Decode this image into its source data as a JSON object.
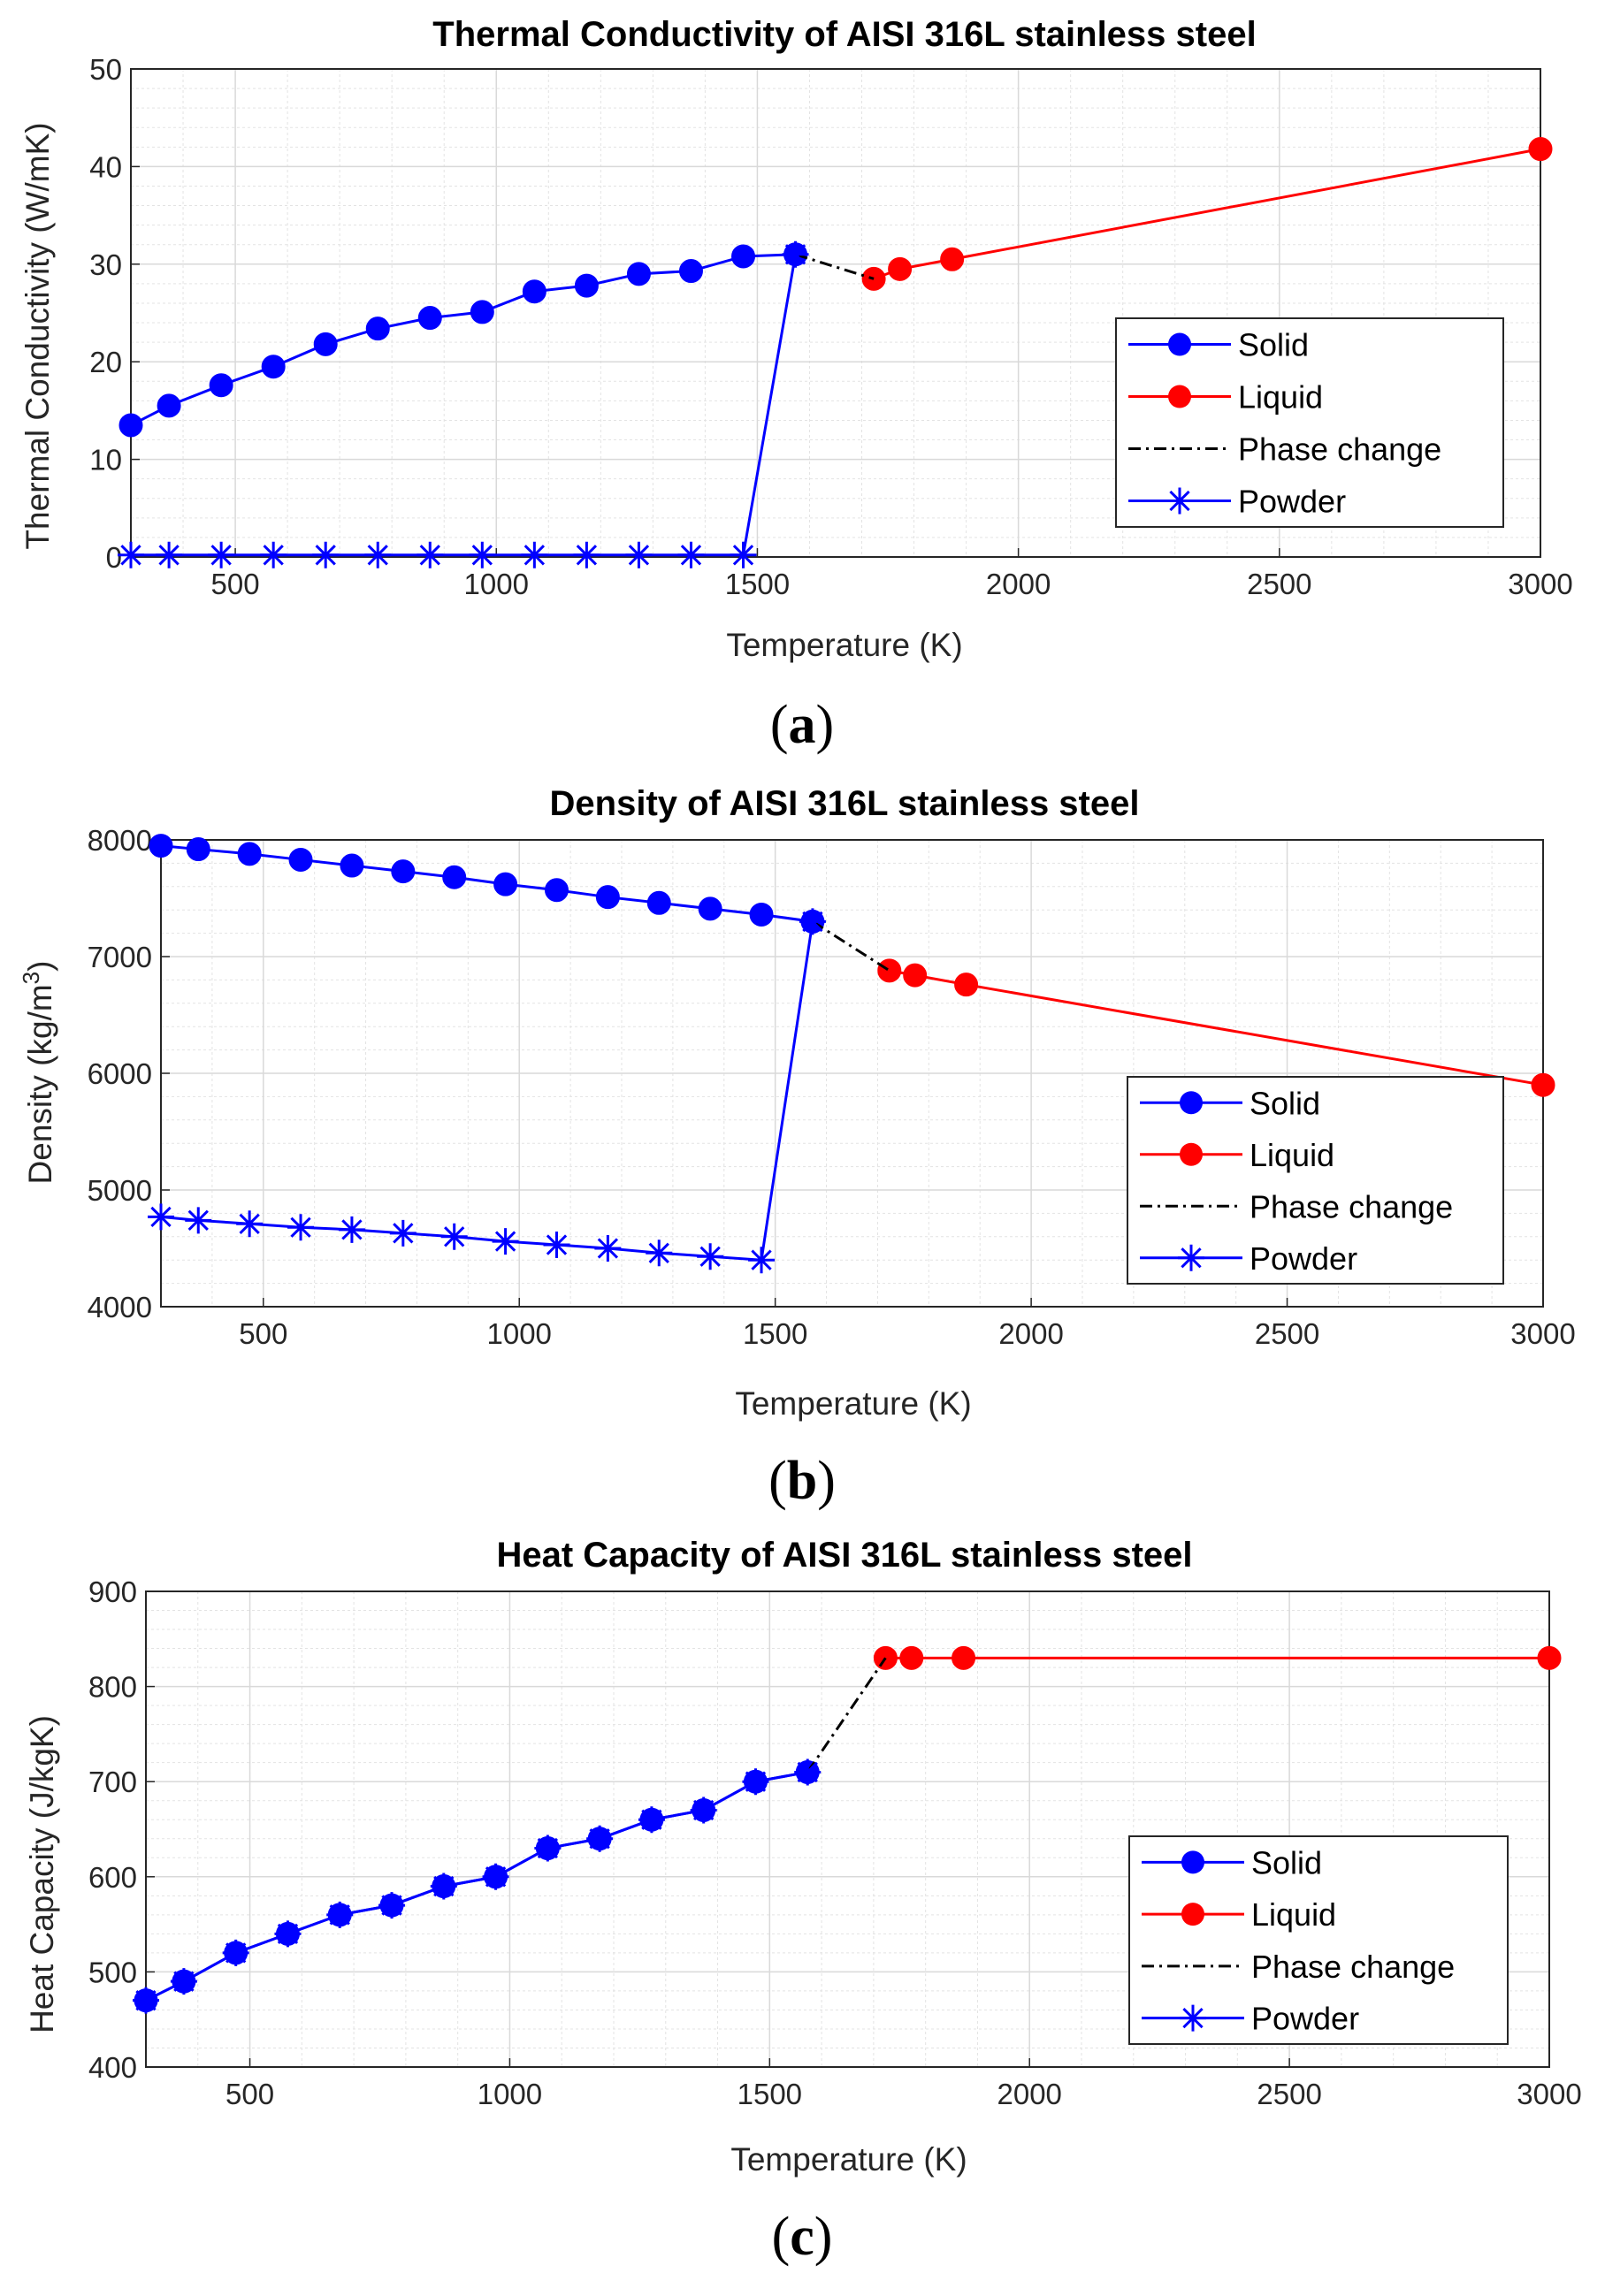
{
  "figure": {
    "captions": [
      "(a)",
      "(b)",
      "(c)"
    ]
  },
  "legend_entries": [
    "Solid",
    "Liquid",
    "Phase change",
    "Powder"
  ],
  "colors": {
    "solid": "#0000ff",
    "liquid": "#ff0000",
    "phase": "#000000",
    "powder": "#0000ff",
    "grid": "#d9d9d9"
  },
  "chart_data": [
    {
      "type": "line",
      "title": "Thermal Conductivity of AISI 316L stainless steel",
      "xlabel": "Temperature (K)",
      "ylabel": "Thermal Conductivity (W/mK)",
      "xlim": [
        300,
        3000
      ],
      "ylim": [
        0,
        50
      ],
      "xticks": [
        500,
        1000,
        1500,
        2000,
        2500,
        3000
      ],
      "yticks": [
        0,
        10,
        20,
        30,
        40,
        50
      ],
      "legend_position": "right",
      "grid": true,
      "series": [
        {
          "name": "Solid",
          "style": "solid-circle",
          "x": [
            300,
            373,
            473,
            573,
            673,
            773,
            873,
            973,
            1073,
            1173,
            1273,
            1373,
            1473,
            1573
          ],
          "y": [
            13.5,
            15.5,
            17.6,
            19.5,
            21.8,
            23.4,
            24.5,
            25.1,
            27.2,
            27.8,
            29.0,
            29.3,
            30.8,
            31.0
          ]
        },
        {
          "name": "Liquid",
          "style": "solid-circle",
          "x": [
            1723,
            1773,
            1873,
            3000
          ],
          "y": [
            28.5,
            29.5,
            30.5,
            41.8
          ]
        },
        {
          "name": "Phase change",
          "style": "dashdot",
          "x": [
            1573,
            1723
          ],
          "y": [
            31.0,
            28.5
          ]
        },
        {
          "name": "Powder",
          "style": "solid-star",
          "x": [
            300,
            373,
            473,
            573,
            673,
            773,
            873,
            973,
            1073,
            1173,
            1273,
            1373,
            1473,
            1573
          ],
          "y": [
            0.2,
            0.2,
            0.2,
            0.2,
            0.2,
            0.2,
            0.2,
            0.2,
            0.2,
            0.2,
            0.2,
            0.2,
            0.2,
            31.0
          ]
        }
      ]
    },
    {
      "type": "line",
      "title": "Density of AISI 316L stainless steel",
      "xlabel": "Temperature (K)",
      "ylabel": "Density (kg/m3)",
      "ylabel_main": "Density (kg/m",
      "ylabel_sup": "3",
      "ylabel_close": ")",
      "xlim": [
        300,
        3000
      ],
      "ylim": [
        4000,
        8000
      ],
      "xticks": [
        500,
        1000,
        1500,
        2000,
        2500,
        3000
      ],
      "yticks": [
        4000,
        5000,
        6000,
        7000,
        8000
      ],
      "legend_position": "lower-right",
      "grid": true,
      "series": [
        {
          "name": "Solid",
          "style": "solid-circle",
          "x": [
            300,
            373,
            473,
            573,
            673,
            773,
            873,
            973,
            1073,
            1173,
            1273,
            1373,
            1473,
            1573
          ],
          "y": [
            7950,
            7920,
            7880,
            7830,
            7780,
            7730,
            7680,
            7620,
            7570,
            7510,
            7460,
            7410,
            7360,
            7300
          ]
        },
        {
          "name": "Liquid",
          "style": "solid-circle",
          "x": [
            1723,
            1773,
            1873,
            3000
          ],
          "y": [
            6880,
            6840,
            6760,
            5900
          ]
        },
        {
          "name": "Phase change",
          "style": "dashdot",
          "x": [
            1573,
            1723
          ],
          "y": [
            7300,
            6880
          ]
        },
        {
          "name": "Powder",
          "style": "solid-star",
          "x": [
            300,
            373,
            473,
            573,
            673,
            773,
            873,
            973,
            1073,
            1173,
            1273,
            1373,
            1473,
            1573
          ],
          "y": [
            4770,
            4740,
            4710,
            4680,
            4660,
            4630,
            4600,
            4560,
            4530,
            4500,
            4460,
            4430,
            4400,
            7300
          ]
        }
      ]
    },
    {
      "type": "line",
      "title": "Heat Capacity of AISI 316L stainless steel",
      "xlabel": "Temperature (K)",
      "ylabel": "Heat Capacity (J/kgK)",
      "xlim": [
        300,
        3000
      ],
      "ylim": [
        400,
        900
      ],
      "xticks": [
        500,
        1000,
        1500,
        2000,
        2500,
        3000
      ],
      "yticks": [
        400,
        500,
        600,
        700,
        800,
        900
      ],
      "legend_position": "lower-right",
      "grid": true,
      "series": [
        {
          "name": "Solid",
          "style": "solid-circle",
          "x": [
            300,
            373,
            473,
            573,
            673,
            773,
            873,
            973,
            1073,
            1173,
            1273,
            1373,
            1473,
            1573
          ],
          "y": [
            470,
            490,
            520,
            540,
            560,
            570,
            590,
            600,
            630,
            640,
            660,
            670,
            700,
            710
          ]
        },
        {
          "name": "Liquid",
          "style": "solid-circle",
          "x": [
            1723,
            1773,
            1873,
            3000
          ],
          "y": [
            830,
            830,
            830,
            830
          ]
        },
        {
          "name": "Phase change",
          "style": "dashdot",
          "x": [
            1573,
            1723
          ],
          "y": [
            710,
            830
          ]
        },
        {
          "name": "Powder",
          "style": "solid-star",
          "x": [
            300,
            373,
            473,
            573,
            673,
            773,
            873,
            973,
            1073,
            1173,
            1273,
            1373,
            1473,
            1573
          ],
          "y": [
            470,
            490,
            520,
            540,
            560,
            570,
            590,
            600,
            630,
            640,
            660,
            670,
            700,
            710
          ]
        }
      ]
    }
  ]
}
